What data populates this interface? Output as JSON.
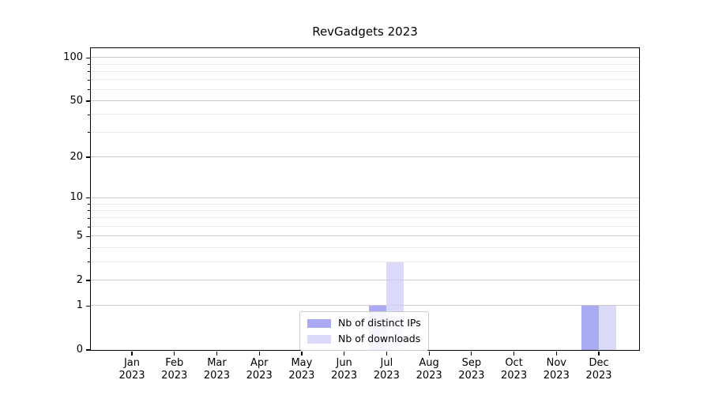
{
  "chart_data": {
    "type": "bar",
    "title": "RevGadgets 2023",
    "categories": [
      "Jan",
      "Feb",
      "Mar",
      "Apr",
      "May",
      "Jun",
      "Jul",
      "Aug",
      "Sep",
      "Oct",
      "Nov",
      "Dec"
    ],
    "category_year": "2023",
    "series": [
      {
        "name": "Nb of distinct IPs",
        "color": "#aaaaf5",
        "values": [
          0,
          0,
          0,
          0,
          0,
          0,
          1,
          0,
          0,
          0,
          0,
          1
        ]
      },
      {
        "name": "Nb of downloads",
        "color": "#dadaf8",
        "values": [
          0,
          0,
          0,
          0,
          0,
          0,
          3,
          0,
          0,
          0,
          0,
          1
        ]
      }
    ],
    "yscale": "log1p",
    "ylim": [
      0,
      116
    ],
    "y_major_ticks": [
      0,
      1,
      2,
      5,
      10,
      20,
      50,
      100
    ],
    "y_minor_ticks": [
      3,
      4,
      6,
      7,
      8,
      9,
      30,
      40,
      60,
      70,
      80,
      90
    ],
    "grid": true,
    "legend_position": "lower center inside"
  },
  "colors": {
    "background": "#ffffff",
    "spine": "#000000",
    "grid_major": "#c9c9c9",
    "grid_minor": "#ebebeb",
    "legend_border": "#cbcbcb",
    "bar_distinct_ips": "#aaaaf5",
    "bar_downloads": "#dadaf8"
  }
}
